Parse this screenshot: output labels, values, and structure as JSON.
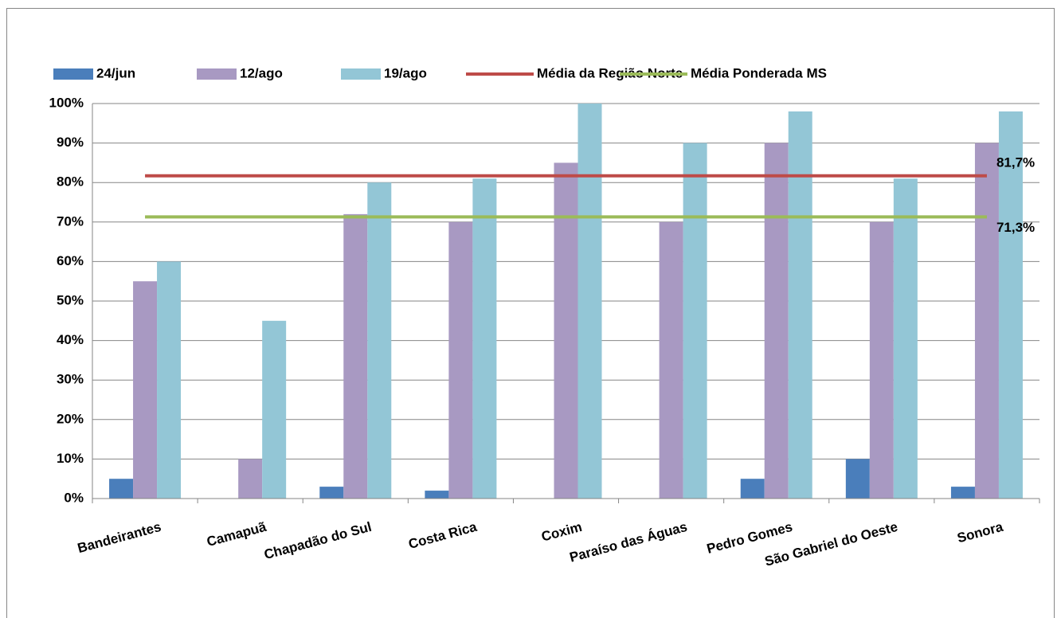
{
  "chart_data": {
    "type": "bar",
    "categories": [
      "Bandeirantes",
      "Camapuã",
      "Chapadão do Sul",
      "Costa Rica",
      "Coxim",
      "Paraíso das Águas",
      "Pedro Gomes",
      "São Gabriel do Oeste",
      "Sonora"
    ],
    "series": [
      {
        "name": "24/jun",
        "color": "#4a7ebb",
        "values": [
          5,
          0,
          3,
          2,
          0,
          0,
          5,
          10,
          3
        ]
      },
      {
        "name": "12/ago",
        "color": "#a899c2",
        "values": [
          55,
          10,
          72,
          70,
          85,
          70,
          90,
          70,
          90
        ]
      },
      {
        "name": "19/ago",
        "color": "#93c6d6",
        "values": [
          60,
          45,
          80,
          81,
          100,
          90,
          98,
          81,
          98
        ]
      },
      {
        "name": "Média da Região Norte",
        "type": "line",
        "color": "#be4b48",
        "values": [
          81.7,
          81.7,
          81.7,
          81.7,
          81.7,
          81.7,
          81.7,
          81.7,
          81.7
        ],
        "value_labels": [
          null,
          null,
          null,
          null,
          null,
          null,
          null,
          null,
          "81,7%"
        ]
      },
      {
        "name": "Média Ponderada MS",
        "type": "line",
        "color": "#9bbb59",
        "values": [
          71.3,
          71.3,
          71.3,
          71.3,
          71.3,
          71.3,
          71.3,
          71.3,
          71.3
        ],
        "value_labels": [
          null,
          null,
          null,
          null,
          null,
          null,
          null,
          null,
          "71,3%"
        ]
      }
    ],
    "ylim": [
      0,
      100
    ],
    "yticks": [
      {
        "value": 0,
        "label": "0%"
      },
      {
        "value": 10,
        "label": "10%"
      },
      {
        "value": 20,
        "label": "20%"
      },
      {
        "value": 30,
        "label": "30%"
      },
      {
        "value": 40,
        "label": "40%"
      },
      {
        "value": 50,
        "label": "50%"
      },
      {
        "value": 60,
        "label": "60%"
      },
      {
        "value": 70,
        "label": "70%"
      },
      {
        "value": 80,
        "label": "80%"
      },
      {
        "value": 90,
        "label": "90%"
      },
      {
        "value": 100,
        "label": "100%"
      }
    ],
    "grid": true
  }
}
